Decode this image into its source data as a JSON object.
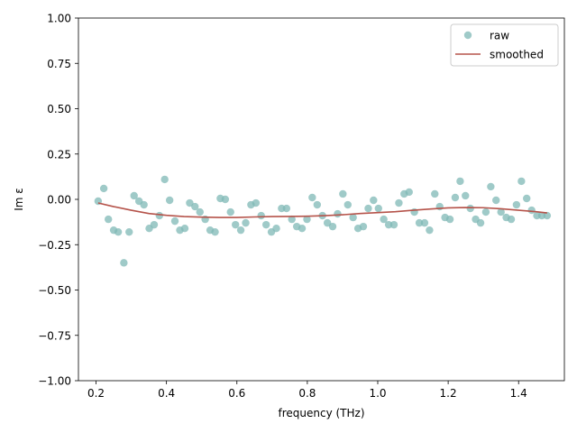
{
  "chart_data": {
    "type": "scatter",
    "xlabel": "frequency (THz)",
    "ylabel": "Im ε",
    "xlim": [
      0.15,
      1.53
    ],
    "ylim": [
      -1.0,
      1.0
    ],
    "xticks": [
      0.2,
      0.4,
      0.6,
      0.8,
      1.0,
      1.2,
      1.4
    ],
    "xtick_labels": [
      "0.2",
      "0.4",
      "0.6",
      "0.8",
      "1.0",
      "1.2",
      "1.4"
    ],
    "yticks": [
      -1.0,
      -0.75,
      -0.5,
      -0.25,
      0.0,
      0.25,
      0.5,
      0.75,
      1.0
    ],
    "ytick_labels": [
      "−1.00",
      "−0.75",
      "−0.50",
      "−0.25",
      "0.00",
      "0.25",
      "0.50",
      "0.75",
      "1.00"
    ],
    "grid": false,
    "legend_position": "top-right",
    "series": [
      {
        "name": "raw",
        "kind": "markers",
        "color": "#7fb8b5",
        "x": [
          0.206,
          0.222,
          0.235,
          0.25,
          0.263,
          0.279,
          0.294,
          0.308,
          0.322,
          0.336,
          0.351,
          0.365,
          0.38,
          0.395,
          0.409,
          0.424,
          0.438,
          0.452,
          0.466,
          0.481,
          0.495,
          0.51,
          0.524,
          0.538,
          0.553,
          0.567,
          0.582,
          0.596,
          0.611,
          0.625,
          0.64,
          0.654,
          0.669,
          0.683,
          0.698,
          0.712,
          0.727,
          0.741,
          0.756,
          0.77,
          0.785,
          0.799,
          0.814,
          0.828,
          0.843,
          0.857,
          0.872,
          0.886,
          0.901,
          0.915,
          0.93,
          0.944,
          0.959,
          0.973,
          0.988,
          1.002,
          1.017,
          1.031,
          1.046,
          1.06,
          1.075,
          1.089,
          1.104,
          1.118,
          1.133,
          1.147,
          1.162,
          1.176,
          1.191,
          1.205,
          1.22,
          1.234,
          1.249,
          1.263,
          1.278,
          1.292,
          1.307,
          1.321,
          1.336,
          1.35,
          1.365,
          1.379,
          1.394,
          1.408,
          1.423,
          1.437,
          1.452,
          1.466,
          1.481
        ],
        "y": [
          -0.01,
          0.06,
          -0.11,
          -0.17,
          -0.18,
          -0.35,
          -0.18,
          0.02,
          -0.01,
          -0.03,
          -0.16,
          -0.14,
          -0.09,
          0.11,
          -0.005,
          -0.12,
          -0.17,
          -0.16,
          -0.02,
          -0.04,
          -0.07,
          -0.11,
          -0.17,
          -0.18,
          0.005,
          0.0,
          -0.07,
          -0.14,
          -0.17,
          -0.13,
          -0.03,
          -0.02,
          -0.09,
          -0.14,
          -0.18,
          -0.16,
          -0.05,
          -0.05,
          -0.11,
          -0.15,
          -0.16,
          -0.11,
          0.01,
          -0.03,
          -0.09,
          -0.13,
          -0.15,
          -0.08,
          0.03,
          -0.03,
          -0.1,
          -0.16,
          -0.15,
          -0.05,
          -0.005,
          -0.05,
          -0.11,
          -0.14,
          -0.14,
          -0.02,
          0.03,
          0.04,
          -0.07,
          -0.13,
          -0.13,
          -0.17,
          0.03,
          -0.04,
          -0.1,
          -0.11,
          0.01,
          0.1,
          0.02,
          -0.05,
          -0.11,
          -0.13,
          -0.07,
          0.07,
          -0.005,
          -0.07,
          -0.1,
          -0.11,
          -0.03,
          0.1,
          0.005,
          -0.06,
          -0.09,
          -0.09,
          -0.09
        ]
      },
      {
        "name": "smoothed",
        "kind": "line",
        "color": "#b5534a",
        "x": [
          0.206,
          0.25,
          0.3,
          0.35,
          0.4,
          0.45,
          0.5,
          0.55,
          0.6,
          0.65,
          0.7,
          0.75,
          0.8,
          0.85,
          0.9,
          0.95,
          1.0,
          1.05,
          1.1,
          1.15,
          1.2,
          1.25,
          1.3,
          1.35,
          1.4,
          1.45,
          1.481
        ],
        "y": [
          -0.02,
          -0.04,
          -0.06,
          -0.078,
          -0.088,
          -0.095,
          -0.098,
          -0.1,
          -0.1,
          -0.097,
          -0.095,
          -0.094,
          -0.093,
          -0.09,
          -0.085,
          -0.078,
          -0.073,
          -0.068,
          -0.06,
          -0.053,
          -0.047,
          -0.045,
          -0.046,
          -0.052,
          -0.06,
          -0.068,
          -0.075
        ]
      }
    ]
  }
}
